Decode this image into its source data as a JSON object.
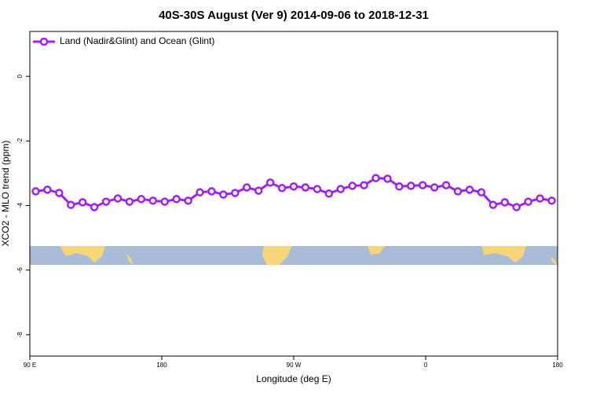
{
  "chart_data": {
    "type": "line",
    "title": "40S-30S August (Ver 9)   2014-09-06 to 2018-12-31",
    "x_label": "Longitude (deg E)",
    "y_label": "XCO2 - MLO trend (ppm)",
    "x": [
      94,
      102,
      110,
      118,
      126,
      134,
      142,
      150,
      158,
      166,
      174,
      182,
      190,
      198,
      206,
      214,
      222,
      230,
      238,
      246,
      254,
      262,
      270,
      278,
      286,
      294,
      302,
      310,
      318,
      326,
      334,
      342,
      350,
      358,
      366,
      374,
      382,
      390,
      398,
      406,
      414,
      422,
      430,
      438,
      446
    ],
    "series": [
      {
        "name": "Land (Nadir&Glint) and Ocean (Glint)",
        "color": "#a020f0",
        "values": [
          -3.56,
          -3.51,
          -3.61,
          -3.98,
          -3.9,
          -4.05,
          -3.88,
          -3.78,
          -3.88,
          -3.8,
          -3.85,
          -3.88,
          -3.8,
          -3.85,
          -3.59,
          -3.56,
          -3.66,
          -3.61,
          -3.44,
          -3.54,
          -3.29,
          -3.46,
          -3.41,
          -3.44,
          -3.49,
          -3.63,
          -3.49,
          -3.39,
          -3.37,
          -3.15,
          -3.17,
          -3.41,
          -3.39,
          -3.37,
          -3.44,
          -3.37,
          -3.56,
          -3.51,
          -3.59,
          -3.98,
          -3.9,
          -4.05,
          -3.88,
          -3.78,
          -3.85
        ]
      }
    ],
    "xlim": [
      90,
      450
    ],
    "xticks": [
      {
        "value": 90,
        "label": "90 E"
      },
      {
        "value": 180,
        "label": "180"
      },
      {
        "value": 270,
        "label": "90 W"
      },
      {
        "value": 360,
        "label": "0"
      },
      {
        "value": 450,
        "label": "180"
      }
    ],
    "ylim": [
      -8.66,
      1.39
    ],
    "yticks": [
      0,
      -2,
      -4,
      -6,
      -8
    ],
    "legend": "top-left"
  }
}
